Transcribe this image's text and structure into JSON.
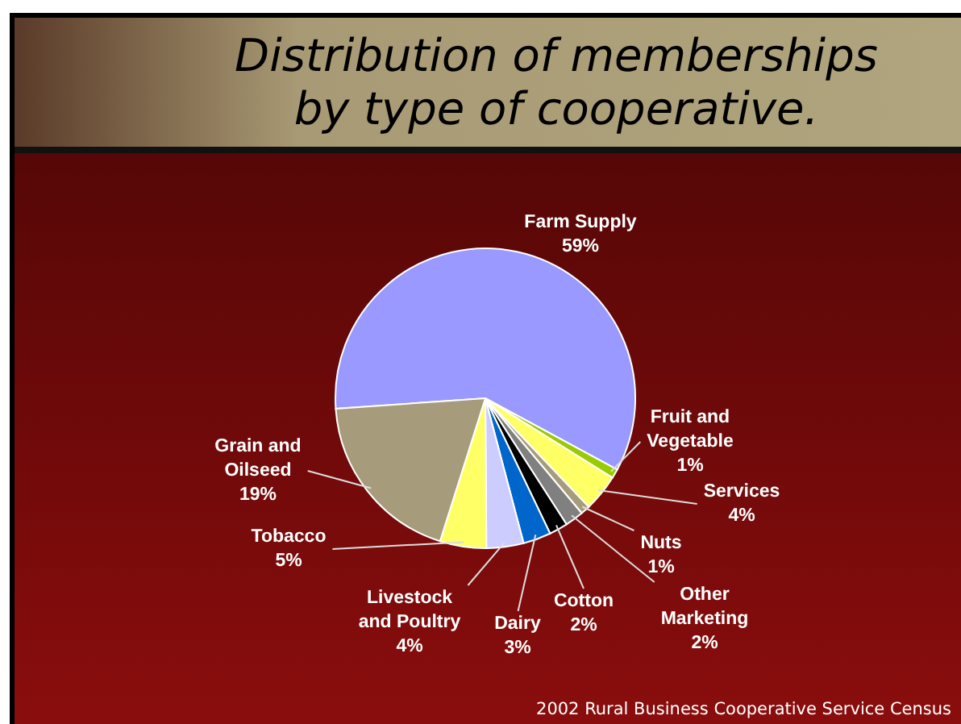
{
  "chart_data": {
    "type": "pie",
    "title": "Distribution of memberships by type of cooperative.",
    "categories": [
      "Farm Supply",
      "Fruit and Vegetable",
      "Services",
      "Nuts",
      "Other Marketing",
      "Cotton",
      "Dairy",
      "Livestock and Poultry",
      "Tobacco",
      "Grain and Oilseed"
    ],
    "values": [
      59,
      1,
      4,
      1,
      2,
      2,
      3,
      4,
      5,
      19
    ],
    "value_labels": [
      "59%",
      "1%",
      "4%",
      "1%",
      "2%",
      "2%",
      "3%",
      "4%",
      "5%",
      "19%"
    ],
    "colors": [
      "#9999ff",
      "#99cc00",
      "#ffff66",
      "#a69c7c",
      "#808080",
      "#000000",
      "#0066cc",
      "#ccccff",
      "#ffff66",
      "#a69c7c"
    ],
    "annotations": [
      "2002 Rural Business Cooperative Service Census"
    ]
  }
}
